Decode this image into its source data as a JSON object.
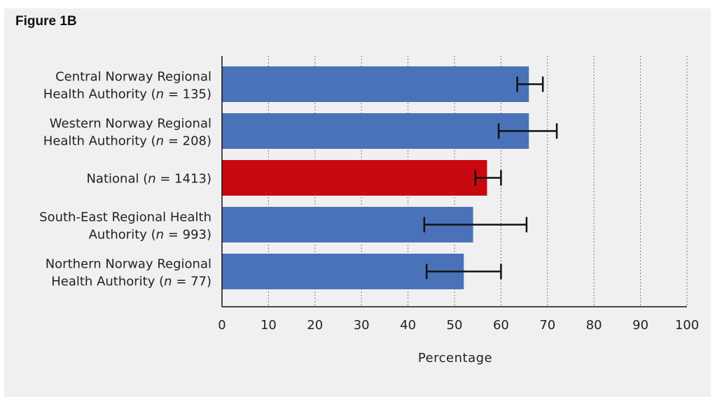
{
  "figure_title": "Figure 1B",
  "chart_data": {
    "type": "bar",
    "orientation": "horizontal",
    "xlabel": "Percentage",
    "xlim": [
      0,
      100
    ],
    "xticks": [
      0,
      10,
      20,
      30,
      40,
      50,
      60,
      70,
      80,
      90,
      100
    ],
    "grid": "vertical dotted",
    "categories": [
      {
        "line1": "Central Norway Regional",
        "line2_pre": "Health Authority (",
        "n_var": "n",
        "line2_post": " = 135)",
        "value": 66,
        "err_low": 63.5,
        "err_high": 69,
        "color": "#4a72b8"
      },
      {
        "line1": "Western Norway Regional",
        "line2_pre": "Health Authority (",
        "n_var": "n",
        "line2_post": " = 208)",
        "value": 66,
        "err_low": 59.5,
        "err_high": 72,
        "color": "#4a72b8"
      },
      {
        "line1": "",
        "line2_pre": "National (",
        "n_var": "n",
        "line2_post": " = 1413)",
        "value": 57,
        "err_low": 54.5,
        "err_high": 60,
        "color": "#c8090f"
      },
      {
        "line1": "South-East Regional Health",
        "line2_pre": "Authority (",
        "n_var": "n",
        "line2_post": " = 993)",
        "value": 54,
        "err_low": 43.5,
        "err_high": 65.5,
        "color": "#4a72b8"
      },
      {
        "line1": "Northern Norway Regional",
        "line2_pre": "Health Authority (",
        "n_var": "n",
        "line2_post": " = 77)",
        "value": 52,
        "err_low": 44,
        "err_high": 60,
        "color": "#4a72b8"
      }
    ]
  }
}
